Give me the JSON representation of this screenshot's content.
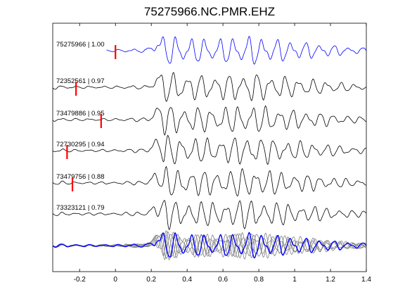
{
  "chart_data": {
    "type": "line",
    "title": "75275966.NC.PMR.EHZ",
    "xlabel": "",
    "ylabel": "",
    "xlim": [
      -0.35,
      1.4
    ],
    "xticks": [
      -0.2,
      0,
      0.2,
      0.4,
      0.6,
      0.8,
      1,
      1.2,
      1.4
    ],
    "xtick_labels": [
      "-0.2",
      "0",
      "0.2",
      "0.4",
      "0.6",
      "0.8",
      "1",
      "1.2",
      "1.4"
    ],
    "grid": false,
    "master_color": "#0000ff",
    "trace_color": "#000000",
    "stack_color": "#808080",
    "marker_color": "#ff0000",
    "traces": [
      {
        "label": "75275966 | 1.00",
        "pick": 0.0,
        "master": true
      },
      {
        "label": "72352561 | 0.97",
        "pick": -0.22,
        "master": false
      },
      {
        "label": "73479886 | 0.95",
        "pick": -0.08,
        "master": false
      },
      {
        "label": "72730295 | 0.94",
        "pick": -0.27,
        "master": false
      },
      {
        "label": "73479756 | 0.88",
        "pick": -0.24,
        "master": false
      },
      {
        "label": "73323121 | 0.79",
        "pick": null,
        "master": false
      }
    ]
  }
}
